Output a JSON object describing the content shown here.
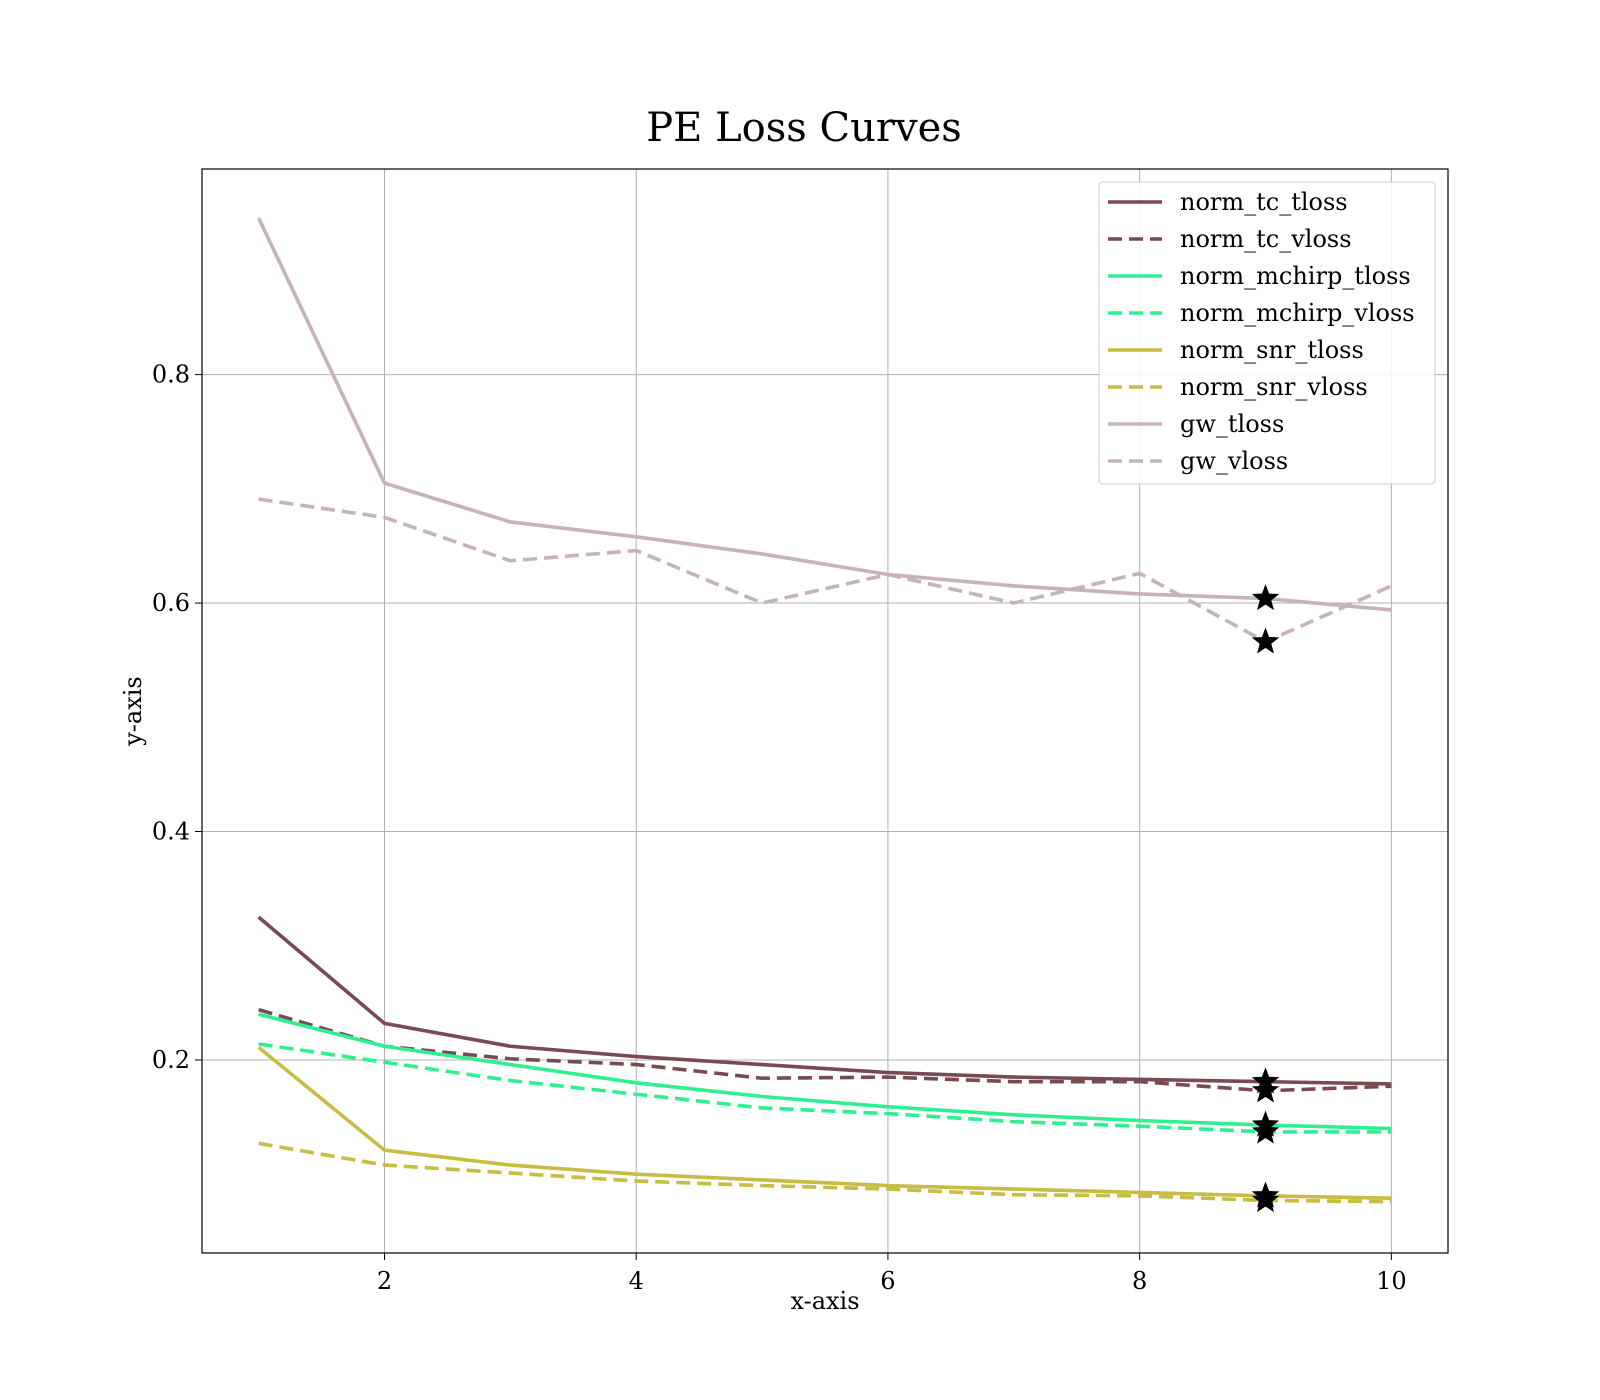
{
  "chart_data": {
    "type": "line",
    "title": "PE Loss Curves",
    "xlabel": "x-axis",
    "ylabel": "y-axis",
    "xlim": [
      0.55,
      10.45
    ],
    "ylim": [
      0.031,
      0.98
    ],
    "xticks": [
      2,
      4,
      6,
      8,
      10
    ],
    "yticks": [
      0.2,
      0.4,
      0.6,
      0.8
    ],
    "grid": true,
    "legend_position": "top-right",
    "x": [
      1,
      2,
      3,
      4,
      5,
      6,
      7,
      8,
      9,
      10
    ],
    "series": [
      {
        "name": "norm_tc_tloss",
        "color": "#7a4a52",
        "style": "solid",
        "values": [
          0.325,
          0.232,
          0.212,
          0.203,
          0.196,
          0.189,
          0.185,
          0.183,
          0.181,
          0.179
        ],
        "best": {
          "x": 9,
          "y": 0.181
        }
      },
      {
        "name": "norm_tc_vloss",
        "color": "#7a4a52",
        "style": "dashed",
        "values": [
          0.244,
          0.212,
          0.201,
          0.196,
          0.184,
          0.185,
          0.181,
          0.181,
          0.173,
          0.177
        ],
        "best": {
          "x": 9,
          "y": 0.173
        }
      },
      {
        "name": "norm_mchirp_tloss",
        "color": "#2ef08f",
        "style": "solid",
        "values": [
          0.24,
          0.212,
          0.196,
          0.18,
          0.168,
          0.159,
          0.152,
          0.147,
          0.143,
          0.14
        ],
        "best": {
          "x": 9,
          "y": 0.143
        }
      },
      {
        "name": "norm_mchirp_vloss",
        "color": "#2ef08f",
        "style": "dashed",
        "values": [
          0.214,
          0.198,
          0.182,
          0.17,
          0.158,
          0.153,
          0.146,
          0.142,
          0.137,
          0.137
        ],
        "best": {
          "x": 9,
          "y": 0.137
        }
      },
      {
        "name": "norm_snr_tloss",
        "color": "#c8bc42",
        "style": "solid",
        "values": [
          0.211,
          0.121,
          0.108,
          0.1,
          0.095,
          0.09,
          0.087,
          0.084,
          0.081,
          0.079
        ],
        "best": {
          "x": 9,
          "y": 0.081
        }
      },
      {
        "name": "norm_snr_vloss",
        "color": "#c8bc42",
        "style": "dashed",
        "values": [
          0.127,
          0.108,
          0.101,
          0.094,
          0.09,
          0.087,
          0.082,
          0.081,
          0.077,
          0.076
        ],
        "best": {
          "x": 9,
          "y": 0.077
        }
      },
      {
        "name": "gw_tloss",
        "color": "#c6b2bd",
        "style": "solid",
        "values": [
          0.937,
          0.705,
          0.671,
          0.658,
          0.643,
          0.625,
          0.615,
          0.608,
          0.604,
          0.594
        ],
        "best": {
          "x": 9,
          "y": 0.604
        }
      },
      {
        "name": "gw_vloss",
        "color": "#c6b2bd",
        "style": "dashed",
        "values": [
          0.691,
          0.675,
          0.637,
          0.646,
          0.6,
          0.625,
          0.6,
          0.626,
          0.566,
          0.615
        ],
        "best": {
          "x": 9,
          "y": 0.566
        }
      }
    ]
  }
}
